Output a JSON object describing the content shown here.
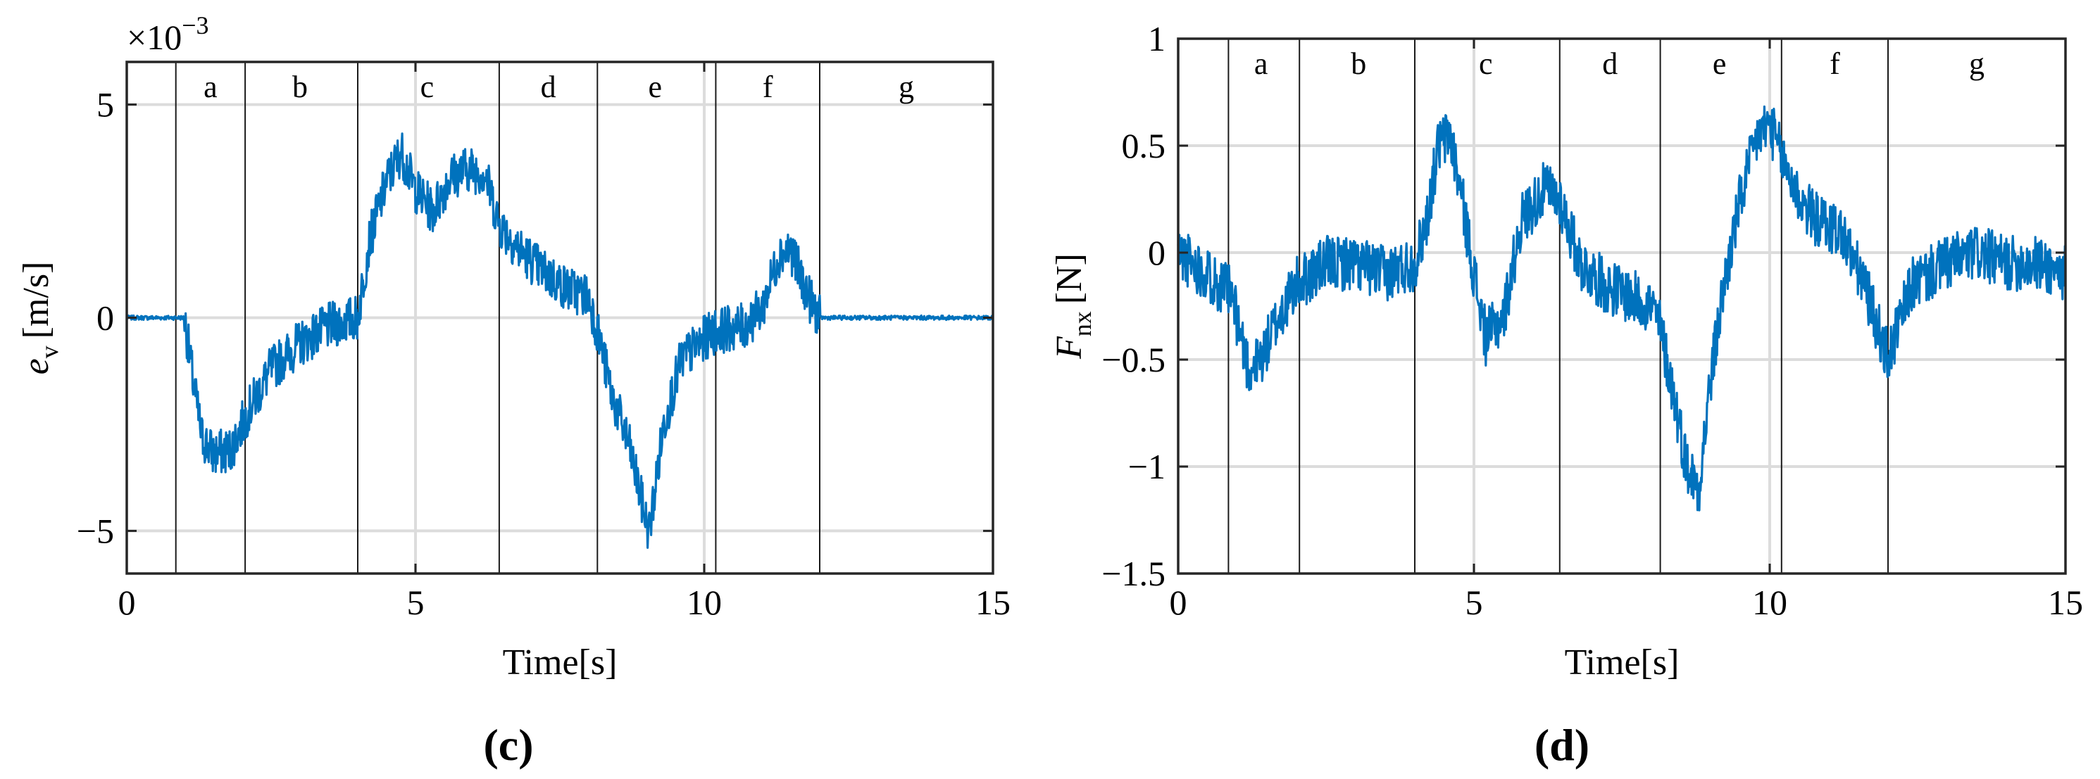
{
  "chart_data": [
    {
      "type": "line",
      "xlabel": "Time[s]",
      "ylabel_main": "e",
      "ylabel_sub": "v",
      "ylabel_unit": "[m/s]",
      "exponent": "×10",
      "exponent_power": "−3",
      "xlim": [
        0,
        15
      ],
      "ylim": [
        -6,
        6
      ],
      "xticks": [
        0,
        5,
        10,
        15
      ],
      "xtick_labels": [
        "0",
        "5",
        "10",
        "15"
      ],
      "yticks": [
        -5,
        0,
        5
      ],
      "ytick_labels": [
        "−5",
        "0",
        "5"
      ],
      "grid": true,
      "color": "#0072BD",
      "sublabel": "(c)",
      "segment_lines": [
        0.85,
        2.05,
        4.0,
        6.45,
        8.15,
        10.2,
        12.0
      ],
      "segment_labels": [
        {
          "label": "a",
          "x": 1.45
        },
        {
          "label": "b",
          "x": 3.0
        },
        {
          "label": "c",
          "x": 5.2
        },
        {
          "label": "d",
          "x": 7.3
        },
        {
          "label": "e",
          "x": 9.15
        },
        {
          "label": "f",
          "x": 11.1
        },
        {
          "label": "g",
          "x": 13.5
        }
      ],
      "series": [
        {
          "x": [
            0,
            1.0,
            1.15,
            1.3,
            1.5,
            1.8,
            2.1,
            2.5,
            3.0,
            3.5,
            4.0,
            4.2,
            4.5,
            4.75,
            5.0,
            5.3,
            5.6,
            5.9,
            6.2,
            6.45,
            6.8,
            7.2,
            7.6,
            8.0,
            8.15,
            8.4,
            8.7,
            9.0,
            9.05,
            9.3,
            9.6,
            10.0,
            10.2,
            10.7,
            11.0,
            11.3,
            11.5,
            11.8,
            12.0,
            15.0
          ],
          "y": [
            0,
            0,
            -1.5,
            -2.8,
            -3.2,
            -3.1,
            -2.2,
            -1.2,
            -0.6,
            -0.2,
            0.0,
            1.8,
            3.2,
            3.9,
            3.0,
            2.5,
            3.3,
            3.5,
            3.4,
            2.2,
            1.6,
            1.1,
            0.7,
            0.5,
            -0.3,
            -1.8,
            -3.0,
            -4.8,
            -5.0,
            -2.5,
            -1.0,
            -0.5,
            -0.3,
            -0.2,
            0.2,
            1.5,
            1.6,
            0.5,
            0.0,
            0.0
          ]
        }
      ]
    },
    {
      "type": "line",
      "xlabel": "Time[s]",
      "ylabel_main": "F",
      "ylabel_sub": "nx",
      "ylabel_unit": "[N]",
      "xlim": [
        0,
        15
      ],
      "ylim": [
        -1.5,
        1
      ],
      "xticks": [
        0,
        5,
        10,
        15
      ],
      "xtick_labels": [
        "0",
        "5",
        "10",
        "15"
      ],
      "yticks": [
        -1.5,
        -1,
        -0.5,
        0,
        0.5,
        1
      ],
      "ytick_labels": [
        "−1.5",
        "−1",
        "−0.5",
        "0",
        "0.5",
        "1"
      ],
      "grid": true,
      "color": "#0072BD",
      "sublabel": "(d)",
      "segment_lines": [
        0.85,
        2.05,
        4.0,
        6.45,
        8.15,
        10.2,
        12.0
      ],
      "segment_labels": [
        {
          "label": "a",
          "x": 1.4
        },
        {
          "label": "b",
          "x": 3.05
        },
        {
          "label": "c",
          "x": 5.2
        },
        {
          "label": "d",
          "x": 7.3
        },
        {
          "label": "e",
          "x": 9.15
        },
        {
          "label": "f",
          "x": 11.1
        },
        {
          "label": "g",
          "x": 13.5
        }
      ],
      "series": [
        {
          "x": [
            0,
            0.5,
            0.9,
            1.2,
            1.4,
            1.7,
            2.0,
            2.5,
            3.0,
            3.5,
            4.0,
            4.2,
            4.4,
            4.6,
            4.8,
            5.0,
            5.2,
            5.5,
            5.8,
            6.2,
            6.45,
            6.8,
            7.2,
            7.6,
            8.0,
            8.15,
            8.4,
            8.6,
            8.8,
            9.0,
            9.2,
            9.5,
            9.8,
            10.0,
            10.2,
            10.5,
            10.8,
            11.2,
            11.6,
            12.0,
            12.4,
            13.0,
            13.5,
            14.0,
            14.5,
            15.0
          ],
          "y": [
            0,
            -0.1,
            -0.2,
            -0.55,
            -0.5,
            -0.3,
            -0.15,
            -0.05,
            -0.05,
            -0.1,
            -0.05,
            0.15,
            0.5,
            0.55,
            0.25,
            -0.1,
            -0.4,
            -0.3,
            0.15,
            0.3,
            0.25,
            -0.05,
            -0.15,
            -0.2,
            -0.25,
            -0.35,
            -0.7,
            -1.0,
            -1.1,
            -0.6,
            -0.2,
            0.25,
            0.55,
            0.6,
            0.45,
            0.25,
            0.15,
            0.1,
            -0.15,
            -0.5,
            -0.15,
            -0.05,
            0.0,
            -0.05,
            -0.05,
            -0.1
          ]
        }
      ]
    }
  ]
}
